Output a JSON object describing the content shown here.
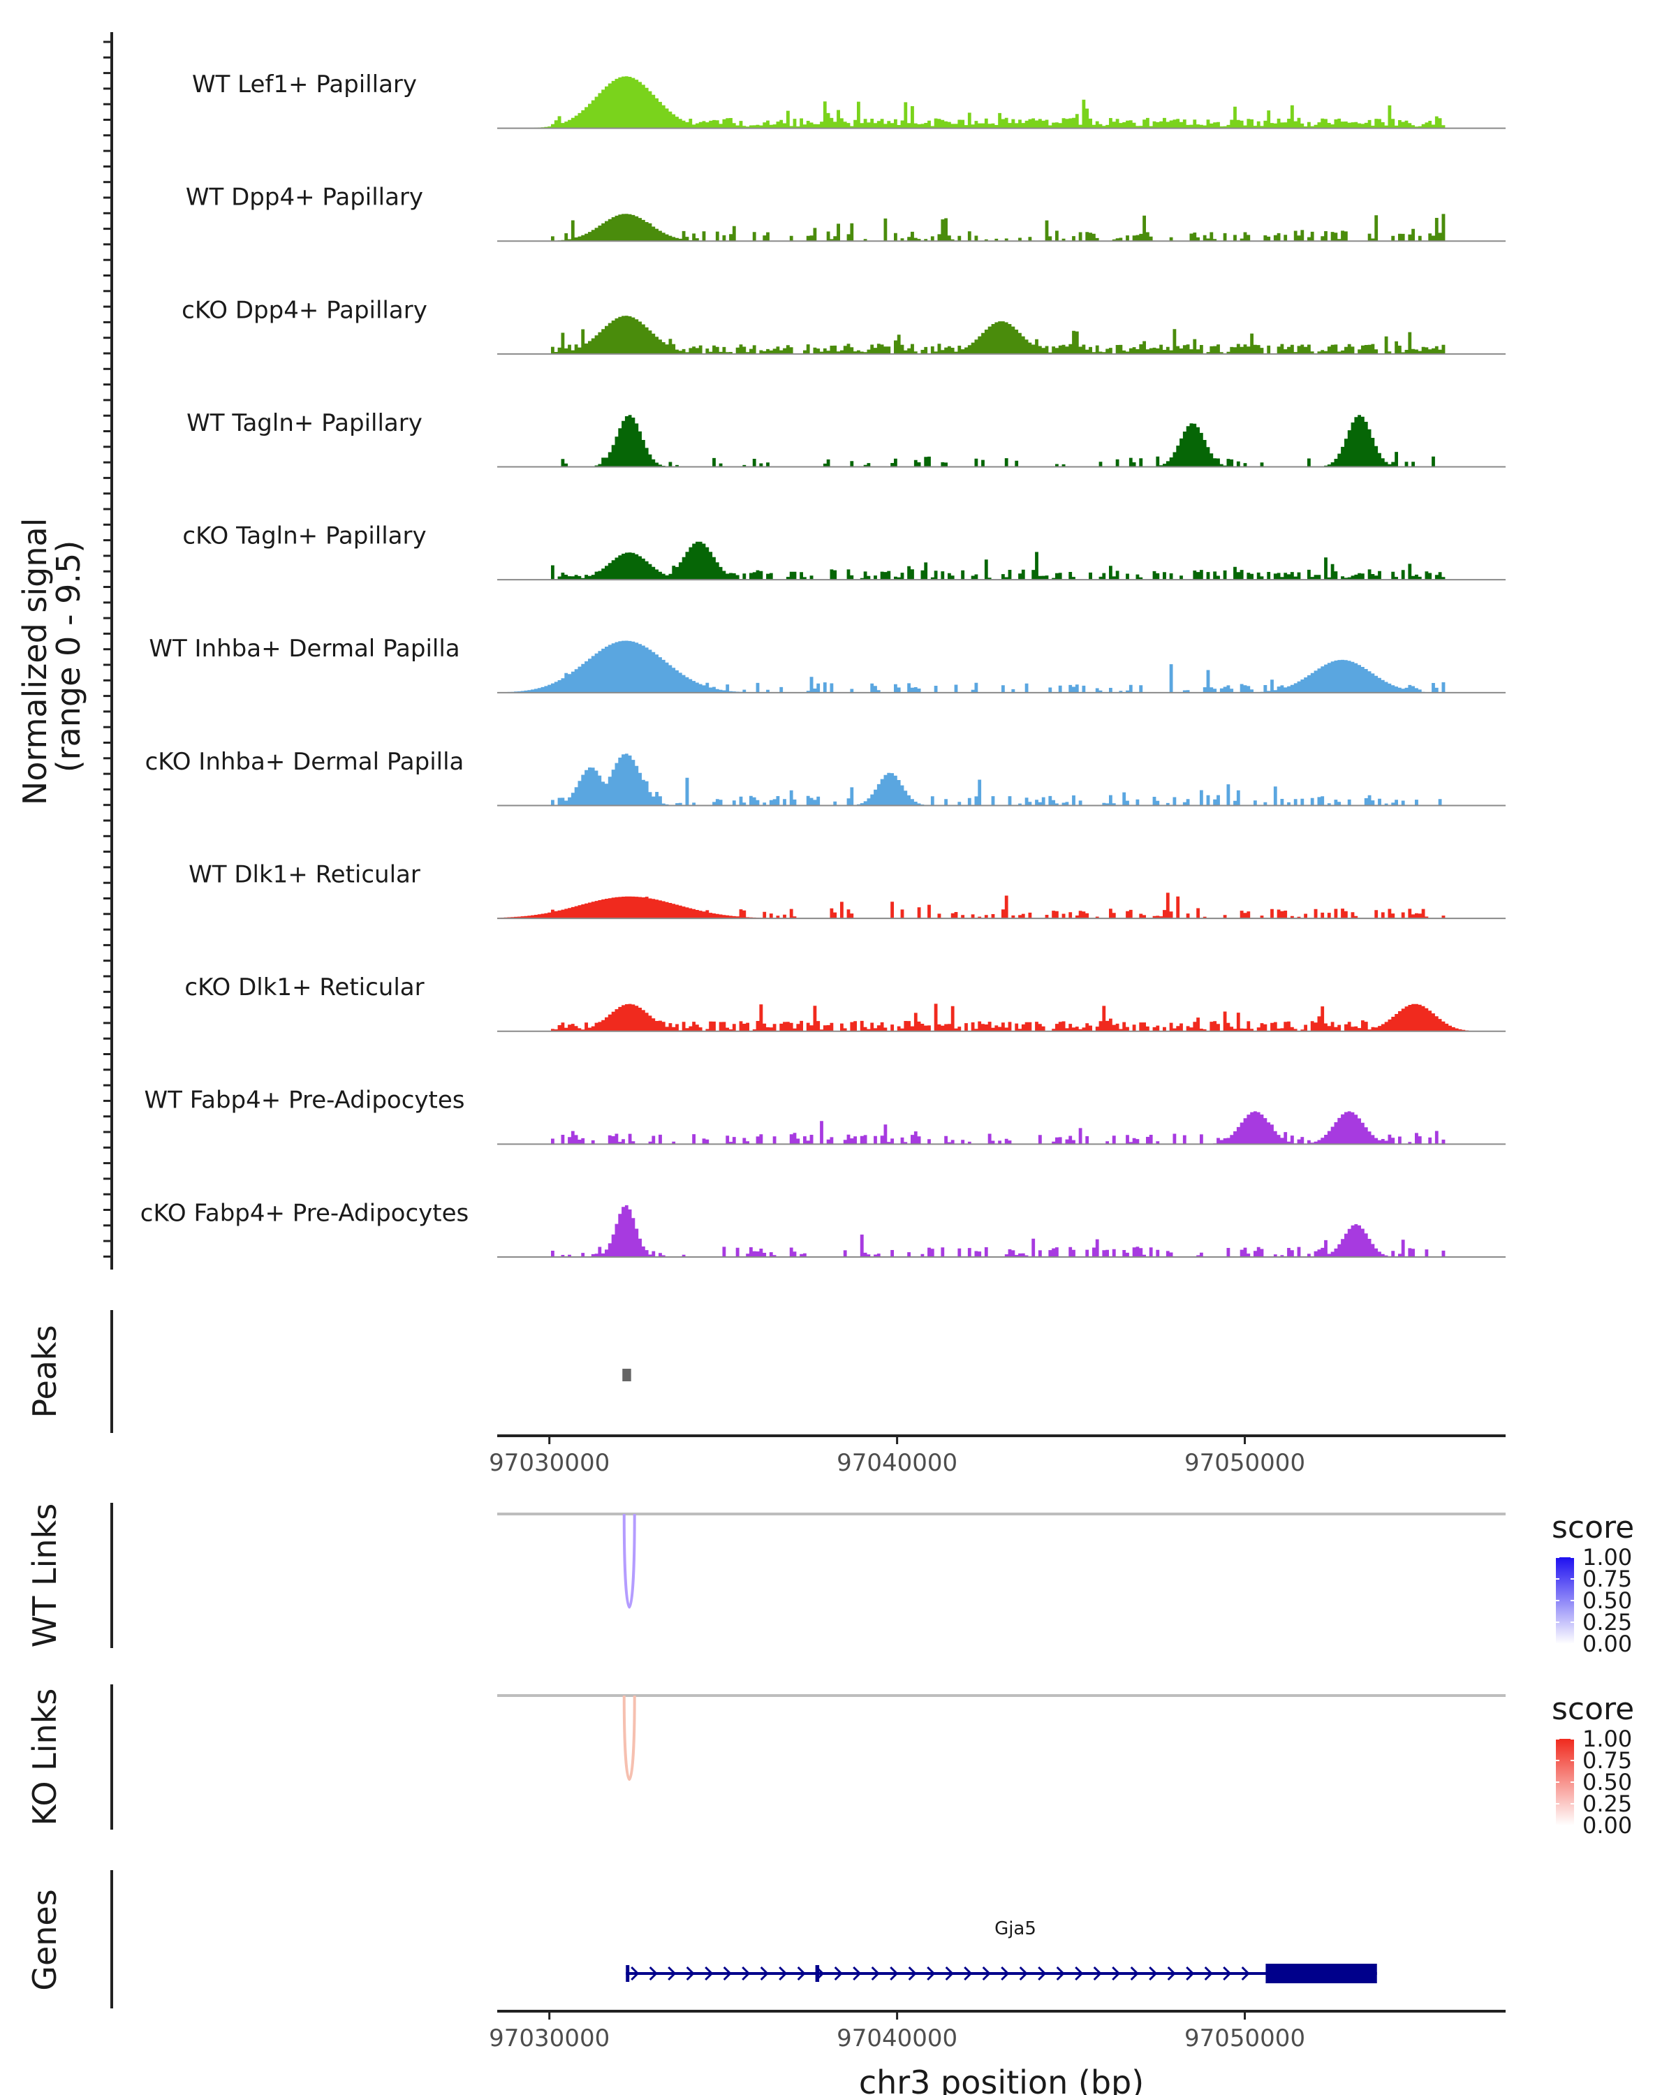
{
  "chart_data": {
    "type": "genome-coverage-plot",
    "region": {
      "chrom": "chr3",
      "start": 97028500,
      "end": 97057500
    },
    "x_ticks": [
      "97030000",
      "97040000",
      "97050000"
    ],
    "x_tick_values": [
      97030000,
      97040000,
      97050000
    ],
    "xlabel": "chr3 position (bp)",
    "coverage_ylabel": [
      "Normalized signal",
      "(range 0 - 9.5)"
    ],
    "coverage_range": [
      0,
      9.5
    ],
    "tracks": [
      {
        "name": "WT Lef1+ Papillary",
        "color": "#7ad31c",
        "density": 1.0,
        "seed": 11,
        "bumps": [
          [
            97032200,
            9.5,
            60
          ]
        ]
      },
      {
        "name": "WT Dpp4+ Papillary",
        "color": "#4a8c0c",
        "density": 0.45,
        "seed": 23,
        "bumps": [
          [
            97032200,
            5,
            50
          ]
        ]
      },
      {
        "name": "cKO Dpp4+ Papillary",
        "color": "#4a8c0c",
        "density": 0.9,
        "seed": 37,
        "bumps": [
          [
            97032200,
            7,
            50
          ],
          [
            97043000,
            6,
            40
          ]
        ]
      },
      {
        "name": "WT Tagln+ Papillary",
        "color": "#066606",
        "density": 0.2,
        "seed": 41,
        "bumps": [
          [
            97032300,
            9.5,
            25
          ],
          [
            97048500,
            8,
            25
          ],
          [
            97053300,
            9.5,
            25
          ]
        ]
      },
      {
        "name": "cKO Tagln+ Papillary",
        "color": "#066606",
        "density": 0.6,
        "seed": 53,
        "bumps": [
          [
            97032300,
            5,
            40
          ],
          [
            97034300,
            7,
            30
          ]
        ]
      },
      {
        "name": "WT Inhba+ Dermal Papilla",
        "color": "#5aa6e0",
        "density": 0.35,
        "seed": 67,
        "bumps": [
          [
            97032200,
            9.5,
            80
          ],
          [
            97052800,
            6,
            60
          ]
        ]
      },
      {
        "name": "cKO Inhba+ Dermal Papilla",
        "color": "#5aa6e0",
        "density": 0.4,
        "seed": 79,
        "bumps": [
          [
            97032200,
            9.5,
            30
          ],
          [
            97031200,
            7,
            25
          ],
          [
            97039800,
            6,
            25
          ]
        ]
      },
      {
        "name": "WT Dlk1+ Reticular",
        "color": "#f02a1e",
        "density": 0.4,
        "seed": 83,
        "bumps": [
          [
            97032300,
            4,
            100
          ]
        ]
      },
      {
        "name": "cKO Dlk1+ Reticular",
        "color": "#f02a1e",
        "density": 0.85,
        "seed": 97,
        "bumps": [
          [
            97032300,
            5,
            40
          ],
          [
            97054900,
            5,
            40
          ]
        ]
      },
      {
        "name": "WT Fabp4+ Pre-Adipocytes",
        "color": "#a73ae0",
        "density": 0.4,
        "seed": 101,
        "bumps": [
          [
            97050300,
            6,
            30
          ],
          [
            97053000,
            6,
            30
          ]
        ]
      },
      {
        "name": "cKO Fabp4+ Pre-Adipocytes",
        "color": "#a73ae0",
        "density": 0.4,
        "seed": 113,
        "bumps": [
          [
            97032200,
            9.5,
            20
          ],
          [
            97053200,
            6,
            25
          ]
        ]
      }
    ],
    "peaks_ylabel": "Peaks",
    "peaks": [
      {
        "start": 97032100,
        "end": 97032350
      }
    ],
    "links": [
      {
        "ylabel": "WT Links",
        "legend_title": "score",
        "color_low": "#ffffff",
        "color_high": "#1e10f0",
        "link_color": "#b49cff",
        "legend_ticks": [
          "1.00",
          "0.75",
          "0.50",
          "0.25",
          "0.00"
        ],
        "anchors": [
          97032150,
          97032450
        ],
        "score": 0.4
      },
      {
        "ylabel": "KO Links",
        "legend_title": "score",
        "color_low": "#ffffff",
        "color_high": "#f02a1e",
        "link_color": "#f6c0b0",
        "legend_ticks": [
          "1.00",
          "0.75",
          "0.50",
          "0.25",
          "0.00"
        ],
        "anchors": [
          97032150,
          97032450
        ],
        "score": 0.3
      }
    ],
    "genes_ylabel": "Genes",
    "genes": [
      {
        "name": "Gja5",
        "color": "#00008b",
        "start": 97032200,
        "end": 97053800,
        "exons": [
          [
            97032200,
            97032300
          ],
          [
            97037650,
            97037760
          ],
          [
            97050600,
            97053800
          ]
        ],
        "strand": "+"
      }
    ]
  }
}
